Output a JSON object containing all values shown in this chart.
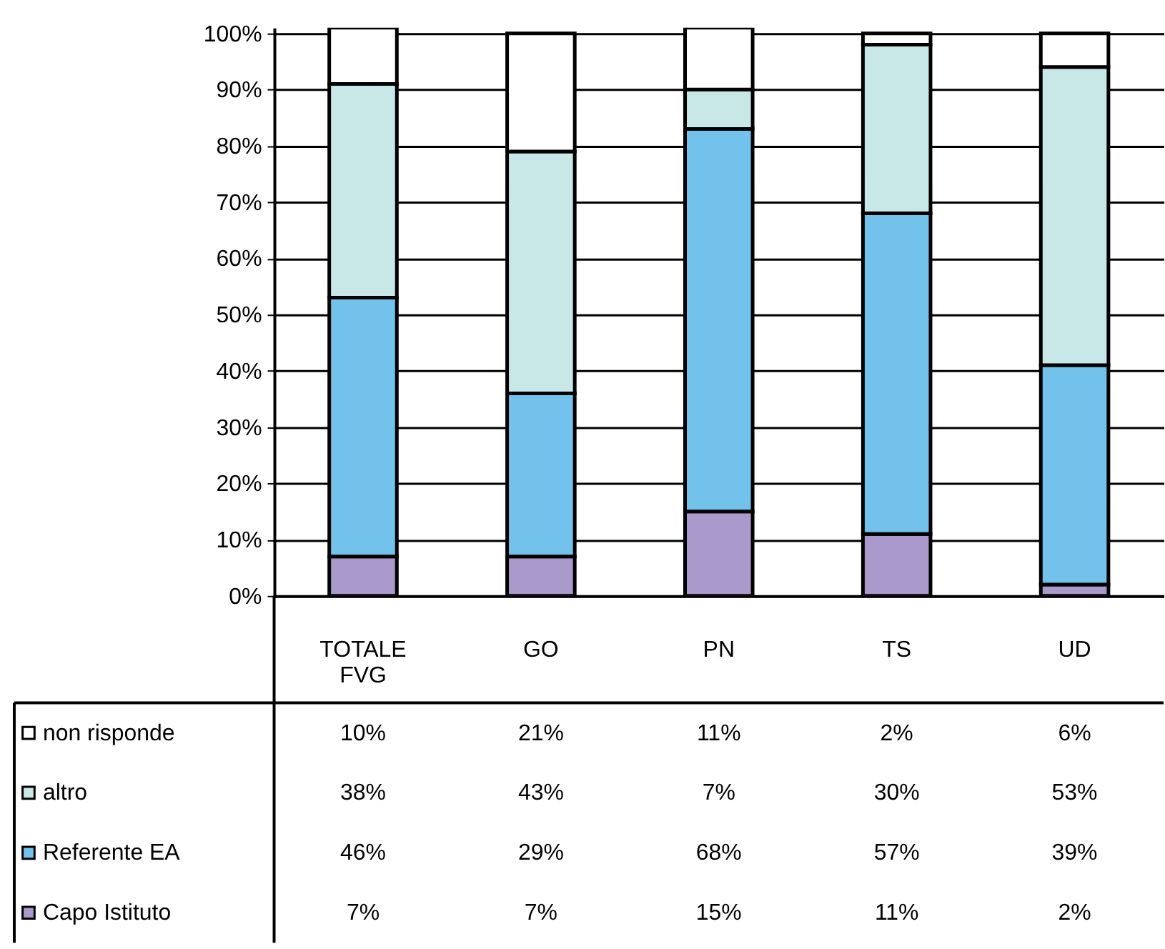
{
  "chart_data": {
    "type": "bar",
    "stacked": true,
    "categories": [
      "TOTALE FVG",
      "GO",
      "PN",
      "TS",
      "UD"
    ],
    "series": [
      {
        "name": "Capo Istituto",
        "color": "#aa9acb",
        "values": [
          7,
          7,
          15,
          11,
          2
        ],
        "value_labels": [
          "7%",
          "7%",
          "15%",
          "11%",
          "2%"
        ]
      },
      {
        "name": "Referente EA",
        "color": "#72c2ec",
        "values": [
          46,
          29,
          68,
          57,
          39
        ],
        "value_labels": [
          "46%",
          "29%",
          "68%",
          "57%",
          "39%"
        ]
      },
      {
        "name": "altro",
        "color": "#c8e8e8",
        "values": [
          38,
          43,
          7,
          30,
          53
        ],
        "value_labels": [
          "38%",
          "43%",
          "7%",
          "30%",
          "53%"
        ]
      },
      {
        "name": "non risponde",
        "color": "#ffffff",
        "values": [
          10,
          21,
          11,
          2,
          6
        ],
        "value_labels": [
          "10%",
          "21%",
          "11%",
          "2%",
          "6%"
        ]
      }
    ],
    "ylim": [
      0,
      101
    ],
    "yticks": [
      {
        "value": 0,
        "label": "0%"
      },
      {
        "value": 10,
        "label": "10%"
      },
      {
        "value": 20,
        "label": "20%"
      },
      {
        "value": 30,
        "label": "30%"
      },
      {
        "value": 40,
        "label": "40%"
      },
      {
        "value": 50,
        "label": "50%"
      },
      {
        "value": 60,
        "label": "60%"
      },
      {
        "value": 70,
        "label": "70%"
      },
      {
        "value": 80,
        "label": "80%"
      },
      {
        "value": 90,
        "label": "90%"
      },
      {
        "value": 100,
        "label": "100%"
      }
    ],
    "grid": "y",
    "legend": "bottom left"
  }
}
